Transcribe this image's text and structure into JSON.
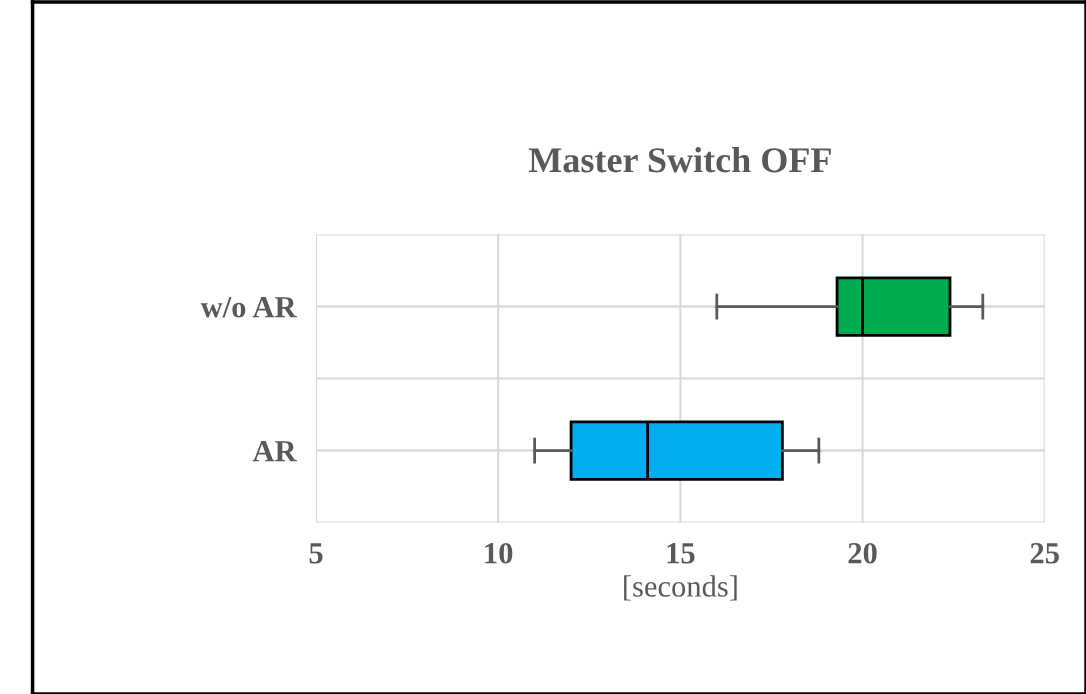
{
  "chart_data": {
    "type": "box",
    "title": "Master Switch OFF",
    "xlabel": "[seconds]",
    "orientation": "horizontal",
    "categories": [
      "w/o AR",
      "AR"
    ],
    "series": [
      {
        "color": "#00ab4e",
        "boxes": [
          {
            "low": 16.0,
            "q1": 19.3,
            "median": 20.0,
            "q3": 22.4,
            "high": 23.3
          },
          null
        ]
      },
      {
        "color": "#00aeef",
        "boxes": [
          null,
          {
            "low": 11.0,
            "q1": 12.0,
            "median": 14.1,
            "q3": 17.8,
            "high": 18.8
          }
        ]
      }
    ],
    "xlim": [
      5,
      25
    ],
    "xticks": [
      5,
      10,
      15,
      20,
      25
    ],
    "grid": true
  }
}
